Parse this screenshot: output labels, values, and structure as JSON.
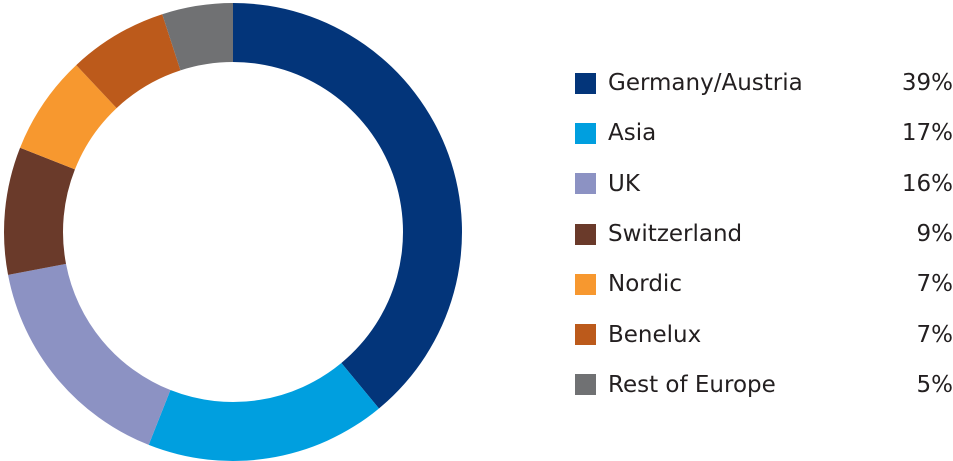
{
  "chart_data": {
    "type": "pie",
    "variant": "donut",
    "title": "",
    "legend_position": "right",
    "categories": [
      "Germany/Austria",
      "Asia",
      "UK",
      "Switzerland",
      "Nordic",
      "Benelux",
      "Rest of Europe"
    ],
    "values": [
      39,
      17,
      16,
      9,
      7,
      7,
      5
    ],
    "value_labels": [
      "39%",
      "17%",
      "16%",
      "9%",
      "7%",
      "7%",
      "5%"
    ],
    "unit": "%",
    "colors": [
      "#03357a",
      "#009fdf",
      "#8c92c3",
      "#6a3a2a",
      "#f7982f",
      "#bc5a1b",
      "#707173"
    ]
  }
}
